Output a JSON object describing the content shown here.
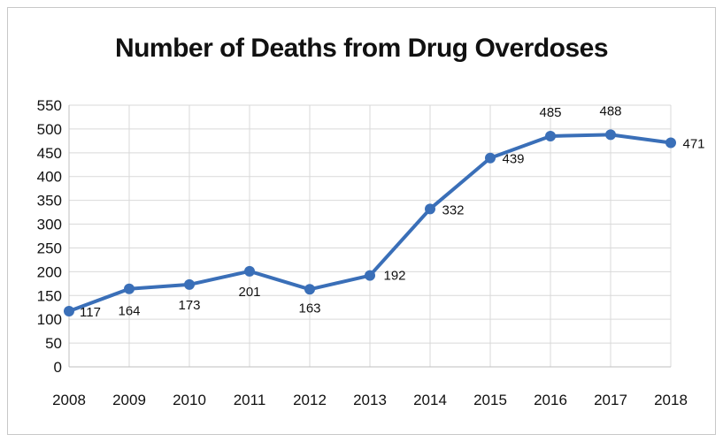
{
  "chart_data": {
    "type": "line",
    "title": "Number of Deaths from Drug Overdoses",
    "xlabel": "",
    "ylabel": "",
    "x": [
      "2008",
      "2009",
      "2010",
      "2011",
      "2012",
      "2013",
      "2014",
      "2015",
      "2016",
      "2017",
      "2018"
    ],
    "series": [
      {
        "values": [
          117,
          164,
          173,
          201,
          163,
          192,
          332,
          439,
          485,
          488,
          471
        ],
        "color": "#3a6fb8"
      }
    ],
    "ylim": [
      0,
      550
    ],
    "yticks": [
      0,
      50,
      100,
      150,
      200,
      250,
      300,
      350,
      400,
      450,
      500,
      550
    ],
    "grid": true,
    "legend": "none",
    "data_labels": true
  }
}
